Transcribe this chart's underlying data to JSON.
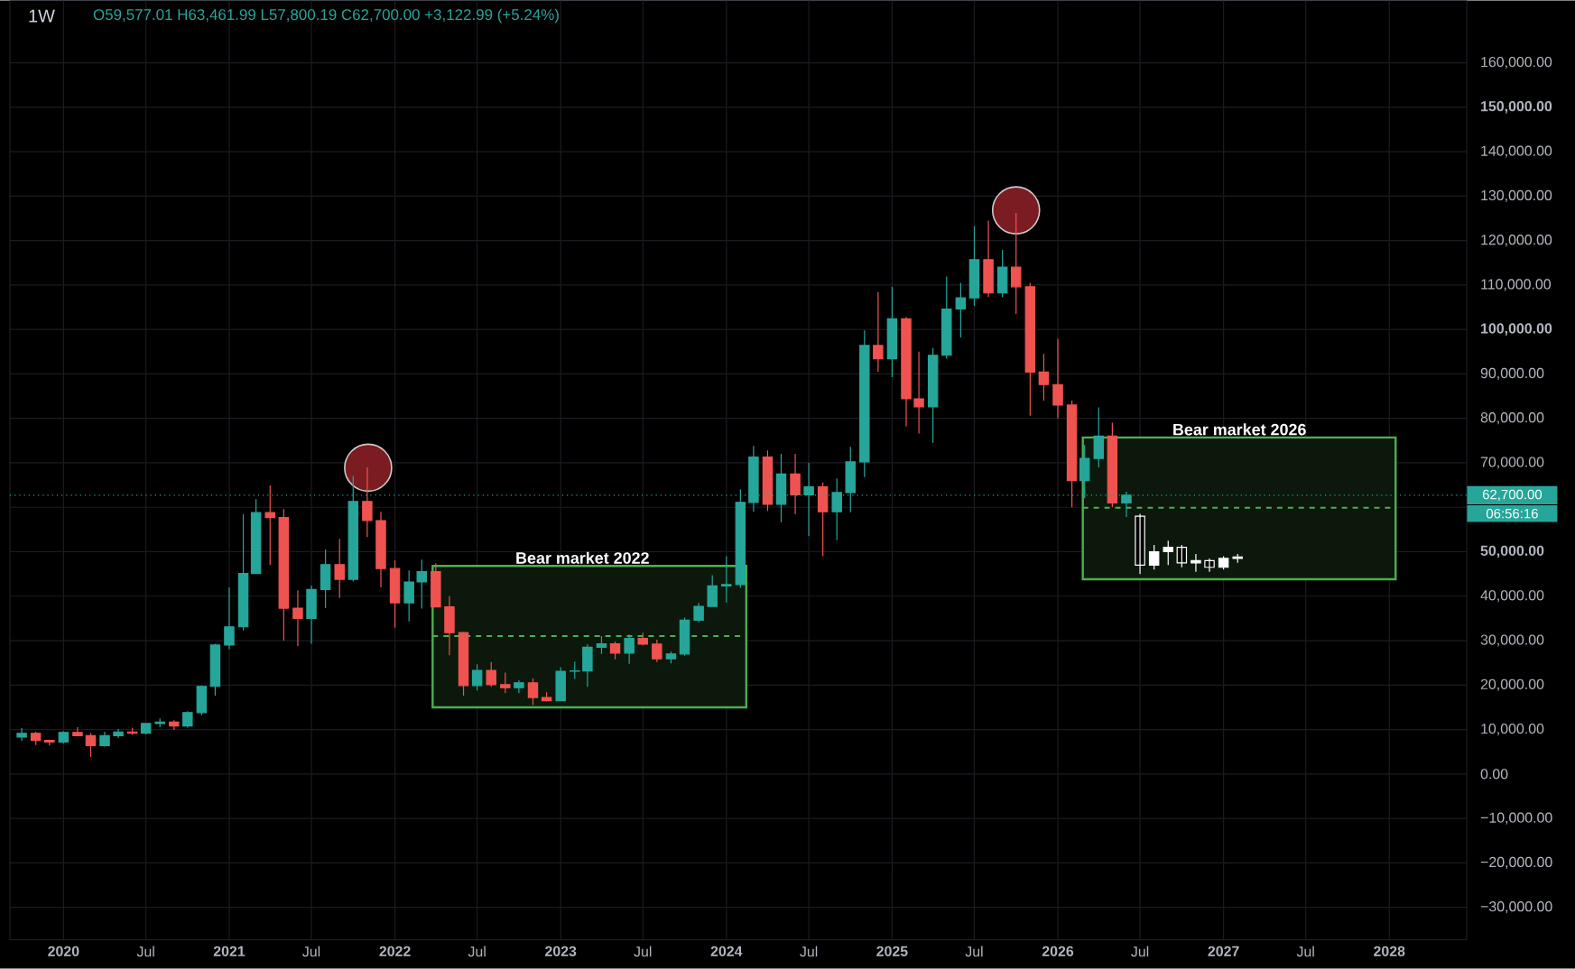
{
  "chart_data": {
    "type": "candlestick",
    "title": "1W",
    "annotations": [
      "O59,577.01 H63,461.99 L57,800.19 C62,700.00 +3,122.99 (+5.24%)",
      "06:56:16",
      {
        "text": "Bear market 2022",
        "x": "2023-02-18",
        "y": 46800
      },
      {
        "text": "Bear market 2026",
        "x": "2027-02-05",
        "y": 75700
      }
    ],
    "xlim": [
      "2019-09-05",
      "2028-06-20"
    ],
    "ylim": [
      -37300,
      174000
    ],
    "xticks": [
      {
        "value": "2020-01",
        "label": "**2020**"
      },
      {
        "value": "2020-07",
        "label": "Jul"
      },
      {
        "value": "2021-01",
        "label": "**2021**"
      },
      {
        "value": "2021-07",
        "label": "Jul"
      },
      {
        "value": "2022-01",
        "label": "**2022**"
      },
      {
        "value": "2022-07",
        "label": "Jul"
      },
      {
        "value": "2023-01",
        "label": "**2023**"
      },
      {
        "value": "2023-07",
        "label": "Jul"
      },
      {
        "value": "2024-01",
        "label": "**2024**"
      },
      {
        "value": "2024-07",
        "label": "Jul"
      },
      {
        "value": "2025-01",
        "label": "**2025**"
      },
      {
        "value": "2025-07",
        "label": "Jul"
      },
      {
        "value": "2026-01",
        "label": "**2026**"
      },
      {
        "value": "2026-07",
        "label": "Jul"
      },
      {
        "value": "2027-01",
        "label": "**2027**"
      },
      {
        "value": "2027-07",
        "label": "Jul"
      },
      {
        "value": "2028-01",
        "label": "**2028**"
      }
    ],
    "yticks": [
      {
        "value": -30000,
        "label": "−30,000.00"
      },
      {
        "value": -20000,
        "label": "−20,000.00"
      },
      {
        "value": -10000,
        "label": "−10,000.00"
      },
      {
        "value": 0,
        "label": "0.00"
      },
      {
        "value": 10000,
        "label": "10,000.00"
      },
      {
        "value": 20000,
        "label": "20,000.00"
      },
      {
        "value": 30000,
        "label": "30,000.00"
      },
      {
        "value": 40000,
        "label": "40,000.00"
      },
      {
        "value": 50000,
        "label": "**50,000.00**"
      },
      {
        "value": 60000,
        "label": null
      },
      {
        "value": 70000,
        "label": "70,000.00"
      },
      {
        "value": 80000,
        "label": "80,000.00"
      },
      {
        "value": 90000,
        "label": "90,000.00"
      },
      {
        "value": 100000,
        "label": "**100,000.00**"
      },
      {
        "value": 110000,
        "label": "110,000.00"
      },
      {
        "value": 120000,
        "label": "120,000.00"
      },
      {
        "value": 130000,
        "label": "130,000.00"
      },
      {
        "value": 140000,
        "label": "140,000.00"
      },
      {
        "value": 150000,
        "label": "**150,000.00**"
      },
      {
        "value": 160000,
        "label": "160,000.00"
      }
    ],
    "grid": true,
    "ref_lines": [
      {
        "axis": "y",
        "value": 62700,
        "label": "62,700.00",
        "color": "#26a69a",
        "line_style": "dotted"
      }
    ],
    "series": [
      {
        "type": "line",
        "color": "#4caf50",
        "line_style": "dashed",
        "x": [
          "2022-03-25",
          "2024-02-14"
        ],
        "values": [
          31000,
          31000
        ],
        "lower": [
          15000,
          15000
        ],
        "upper": [
          46800,
          46800
        ]
      },
      {
        "type": "line",
        "color": "#4caf50",
        "line_style": "dashed",
        "x": [
          "2026-02-25",
          "2028-01-15"
        ],
        "values": [
          59900,
          59900
        ],
        "lower": [
          43800,
          43800
        ],
        "upper": [
          75700,
          75700
        ]
      },
      {
        "type": "scatter",
        "color": "#7b1c22",
        "marker": "circle",
        "x": [
          "2021-11-03",
          "2025-10-01"
        ],
        "values": [
          68900,
          126800
        ]
      },
      {
        "x": [
          "2019-10",
          "2019-11",
          "2019-12",
          "2020-01",
          "2020-02",
          "2020-03",
          "2020-04",
          "2020-05",
          "2020-06",
          "2020-07",
          "2020-08",
          "2020-09",
          "2020-10",
          "2020-11",
          "2020-12",
          "2021-01",
          "2021-02",
          "2021-03",
          "2021-04",
          "2021-05",
          "2021-06",
          "2021-07",
          "2021-08",
          "2021-09",
          "2021-10",
          "2021-11",
          "2021-12",
          "2022-01",
          "2022-02",
          "2022-03",
          "2022-04",
          "2022-05",
          "2022-06",
          "2022-07",
          "2022-08",
          "2022-09",
          "2022-10",
          "2022-11",
          "2022-12",
          "2023-01",
          "2023-02",
          "2023-03",
          "2023-04",
          "2023-05",
          "2023-06",
          "2023-07",
          "2023-08",
          "2023-09",
          "2023-10",
          "2023-11",
          "2023-12",
          "2024-01",
          "2024-02",
          "2024-03",
          "2024-04",
          "2024-05",
          "2024-06",
          "2024-07",
          "2024-08",
          "2024-09",
          "2024-10",
          "2024-11",
          "2024-12",
          "2025-01",
          "2025-02",
          "2025-03",
          "2025-04",
          "2025-05",
          "2025-06",
          "2025-07",
          "2025-08",
          "2025-09",
          "2025-10",
          "2025-11",
          "2025-12",
          "2026-01",
          "2026-02",
          "2026-03",
          "2026-04",
          "2026-05",
          "2026-06"
        ],
        "ohlc": [
          [
            8300,
            10300,
            7400,
            9150
          ],
          [
            9150,
            9500,
            6500,
            7550
          ],
          [
            7550,
            7750,
            6400,
            7200
          ],
          [
            7200,
            9600,
            6850,
            9350
          ],
          [
            9350,
            10500,
            8450,
            8600
          ],
          [
            8600,
            9200,
            3800,
            6400
          ],
          [
            6400,
            9500,
            6150,
            8600
          ],
          [
            8600,
            10100,
            8100,
            9450
          ],
          [
            9450,
            10400,
            8800,
            9150
          ],
          [
            9150,
            11400,
            8900,
            11350
          ],
          [
            11350,
            12500,
            10500,
            11650
          ],
          [
            11650,
            12100,
            9900,
            10800
          ],
          [
            10800,
            14100,
            10400,
            13800
          ],
          [
            13800,
            19900,
            13200,
            19700
          ],
          [
            19700,
            29300,
            17600,
            29000
          ],
          [
            29000,
            42000,
            28100,
            33100
          ],
          [
            33100,
            58400,
            32300,
            45100
          ],
          [
            45100,
            61800,
            45000,
            58800
          ],
          [
            58800,
            64900,
            47000,
            57700
          ],
          [
            57700,
            59600,
            30000,
            37300
          ],
          [
            37300,
            41300,
            28800,
            35000
          ],
          [
            35000,
            42400,
            29300,
            41500
          ],
          [
            41500,
            50500,
            37300,
            47100
          ],
          [
            47100,
            52900,
            39600,
            43800
          ],
          [
            43800,
            67000,
            43300,
            61300
          ],
          [
            61300,
            69000,
            53300,
            57000
          ],
          [
            57000,
            59000,
            42000,
            46200
          ],
          [
            46200,
            48000,
            32900,
            38500
          ],
          [
            38500,
            45800,
            34300,
            43200
          ],
          [
            43200,
            48200,
            37200,
            45500
          ],
          [
            45500,
            47400,
            37500,
            37600
          ],
          [
            37600,
            40000,
            26700,
            31800
          ],
          [
            31800,
            32000,
            17600,
            19900
          ],
          [
            19900,
            24700,
            18800,
            23300
          ],
          [
            23300,
            25200,
            19600,
            20100
          ],
          [
            20100,
            22800,
            18200,
            19400
          ],
          [
            19400,
            21100,
            18200,
            20500
          ],
          [
            20500,
            21500,
            15500,
            17200
          ],
          [
            17200,
            18400,
            16300,
            16500
          ],
          [
            16500,
            24000,
            16500,
            23100
          ],
          [
            23100,
            25300,
            21400,
            23200
          ],
          [
            23200,
            29200,
            19600,
            28500
          ],
          [
            28500,
            31000,
            27000,
            29300
          ],
          [
            29300,
            29800,
            25800,
            27200
          ],
          [
            27200,
            31400,
            24800,
            30500
          ],
          [
            30500,
            31800,
            28900,
            29200
          ],
          [
            29200,
            30200,
            25200,
            25900
          ],
          [
            25900,
            27500,
            24900,
            27000
          ],
          [
            27000,
            35200,
            26600,
            34600
          ],
          [
            34600,
            38500,
            34100,
            37700
          ],
          [
            37700,
            44700,
            37600,
            42300
          ],
          [
            42300,
            49000,
            38600,
            42600
          ],
          [
            42600,
            64000,
            41900,
            61100
          ],
          [
            61100,
            73800,
            59000,
            71300
          ],
          [
            71300,
            72800,
            59200,
            60700
          ],
          [
            60700,
            72000,
            56600,
            67500
          ],
          [
            67500,
            72000,
            58400,
            62800
          ],
          [
            62800,
            70000,
            53500,
            64600
          ],
          [
            64600,
            65600,
            49000,
            59000
          ],
          [
            59000,
            66500,
            52600,
            63300
          ],
          [
            63300,
            73600,
            58900,
            70200
          ],
          [
            70200,
            99800,
            66800,
            96400
          ],
          [
            96400,
            108400,
            90500,
            93400
          ],
          [
            93400,
            109600,
            89300,
            102400
          ],
          [
            102400,
            102800,
            78200,
            84400
          ],
          [
            84400,
            95000,
            76600,
            82600
          ],
          [
            82600,
            95800,
            74500,
            94200
          ],
          [
            94200,
            111900,
            93400,
            104600
          ],
          [
            104600,
            110500,
            98200,
            107100
          ],
          [
            107100,
            123200,
            105300,
            115700
          ],
          [
            115700,
            124500,
            107300,
            108200
          ],
          [
            108200,
            117900,
            107300,
            114000
          ],
          [
            114000,
            126200,
            103500,
            109600
          ],
          [
            109600,
            110500,
            80600,
            90400
          ],
          [
            90400,
            94500,
            84000,
            87600
          ],
          [
            87600,
            97900,
            80000,
            83000
          ],
          [
            83000,
            84000,
            60000,
            66000
          ],
          [
            66000,
            74000,
            62000,
            71000
          ],
          [
            71000,
            82500,
            69000,
            76000
          ],
          [
            76000,
            79000,
            60000,
            61000
          ],
          [
            61000,
            63500,
            57800,
            62700
          ]
        ],
        "colors": [
          "#26a69a",
          "#ef5350",
          "#ef5350",
          "#26a69a",
          "#ef5350",
          "#ef5350",
          "#26a69a",
          "#26a69a",
          "#ef5350",
          "#26a69a",
          "#26a69a",
          "#ef5350",
          "#26a69a",
          "#26a69a",
          "#26a69a",
          "#26a69a",
          "#26a69a",
          "#26a69a",
          "#ef5350",
          "#ef5350",
          "#ef5350",
          "#26a69a",
          "#26a69a",
          "#ef5350",
          "#26a69a",
          "#ef5350",
          "#ef5350",
          "#ef5350",
          "#26a69a",
          "#26a69a",
          "#ef5350",
          "#ef5350",
          "#ef5350",
          "#26a69a",
          "#ef5350",
          "#ef5350",
          "#26a69a",
          "#ef5350",
          "#ef5350",
          "#26a69a",
          "#26a69a",
          "#26a69a",
          "#26a69a",
          "#ef5350",
          "#26a69a",
          "#ef5350",
          "#ef5350",
          "#26a69a",
          "#26a69a",
          "#26a69a",
          "#26a69a",
          "#26a69a",
          "#26a69a",
          "#26a69a",
          "#ef5350",
          "#26a69a",
          "#ef5350",
          "#26a69a",
          "#ef5350",
          "#26a69a",
          "#26a69a",
          "#26a69a",
          "#ef5350",
          "#26a69a",
          "#ef5350",
          "#ef5350",
          "#26a69a",
          "#26a69a",
          "#26a69a",
          "#26a69a",
          "#ef5350",
          "#26a69a",
          "#ef5350",
          "#ef5350",
          "#ef5350",
          "#ef5350",
          "#ef5350",
          "#26a69a",
          "#26a69a",
          "#ef5350",
          "#26a69a"
        ]
      },
      {
        "type": "candlestick",
        "color": "#ffffff",
        "x": [
          "2026-07",
          "2026-08",
          "2026-09",
          "2026-10",
          "2026-11",
          "2026-12",
          "2027-01",
          "2027-02"
        ],
        "ohlc": [
          [
            58000,
            58500,
            45000,
            47000
          ],
          [
            47000,
            51500,
            46000,
            50000
          ],
          [
            50000,
            52500,
            47000,
            51000
          ],
          [
            51000,
            51500,
            46500,
            47500
          ],
          [
            47500,
            49500,
            45500,
            48000
          ],
          [
            48000,
            48500,
            45500,
            46500
          ],
          [
            46500,
            49000,
            46000,
            48500
          ],
          [
            48500,
            49500,
            47500,
            48800
          ]
        ]
      }
    ]
  }
}
